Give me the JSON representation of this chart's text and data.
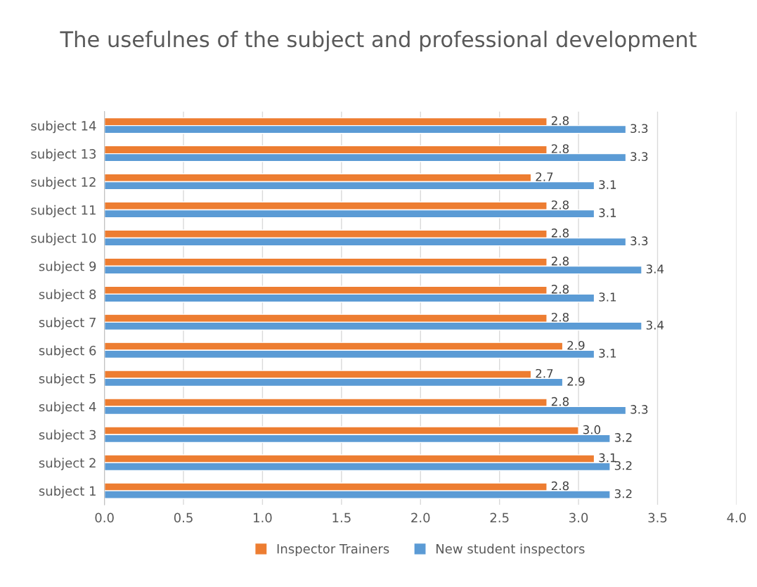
{
  "chart_data": {
    "type": "bar",
    "orientation": "horizontal",
    "title": "The usefulnes of the subject and professional development",
    "categories": [
      "subject 14",
      "subject 13",
      "subject 12",
      "subject 11",
      "subject 10",
      "subject 9",
      "subject 8",
      "subject 7",
      "subject 6",
      "subject 5",
      "subject 4",
      "subject 3",
      "subject 2",
      "subject 1"
    ],
    "series": [
      {
        "name": "Inspector Trainers",
        "color": "#ed7d31",
        "values": [
          2.8,
          2.8,
          2.7,
          2.8,
          2.8,
          2.8,
          2.8,
          2.8,
          2.9,
          2.7,
          2.8,
          3.0,
          3.1,
          2.8
        ],
        "value_labels": [
          "2.8",
          "2.8",
          "2.7",
          "2.8",
          "2.8",
          "2.8",
          "2.8",
          "2.8",
          "2.9",
          "2.7",
          "2.8",
          "3.0",
          "3.1",
          "2.8"
        ]
      },
      {
        "name": "New student inspectors",
        "color": "#5b9bd5",
        "values": [
          3.3,
          3.3,
          3.1,
          3.1,
          3.3,
          3.4,
          3.1,
          3.4,
          3.1,
          2.9,
          3.3,
          3.2,
          3.2,
          3.2
        ],
        "value_labels": [
          "3.3",
          "3.3",
          "3.1",
          "3.1",
          "3.3",
          "3.4",
          "3.1",
          "3.4",
          "3.1",
          "2.9",
          "3.3",
          "3.2",
          "3.2",
          "3.2"
        ]
      }
    ],
    "xlim": [
      0,
      4
    ],
    "xticks": [
      {
        "value": 0,
        "label": "0.0"
      },
      {
        "value": 0.5,
        "label": "0.5"
      },
      {
        "value": 1,
        "label": "1.0"
      },
      {
        "value": 1.5,
        "label": "1.5"
      },
      {
        "value": 2,
        "label": "2.0"
      },
      {
        "value": 2.5,
        "label": "2.5"
      },
      {
        "value": 3,
        "label": "3.0"
      },
      {
        "value": 3.5,
        "label": "3.5"
      },
      {
        "value": 4,
        "label": "4.0"
      }
    ],
    "grid": "x",
    "legend": "bottom"
  }
}
